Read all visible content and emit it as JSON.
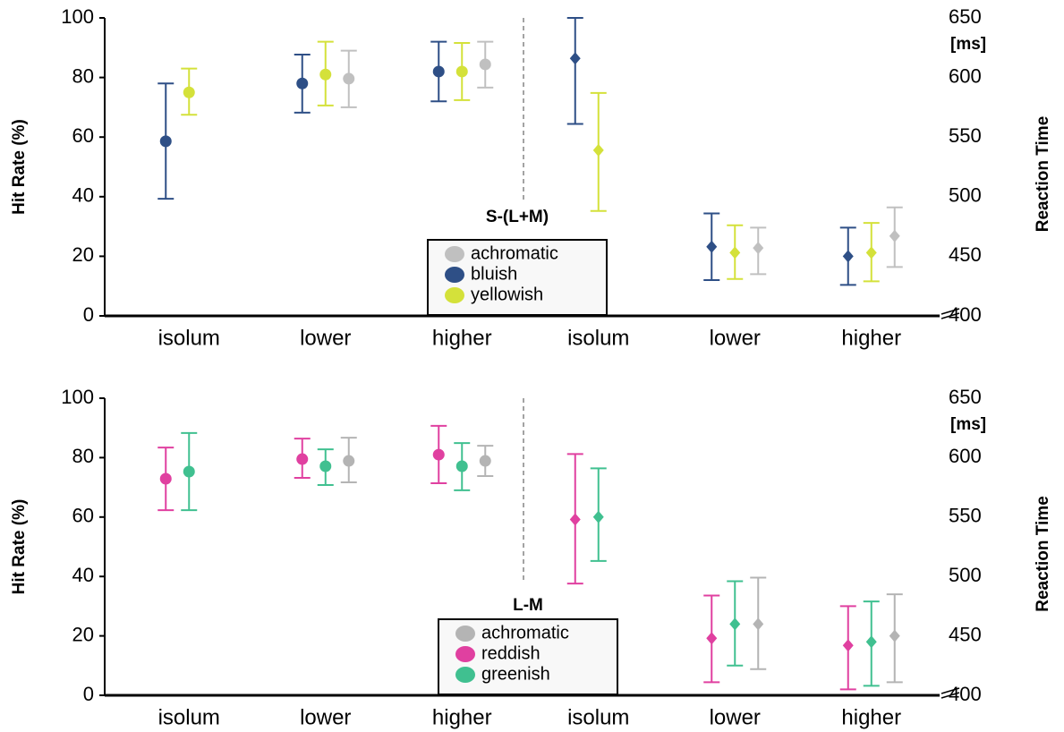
{
  "chart_data": [
    {
      "type": "errorbar",
      "title": "S-(L+M)",
      "y_label": "Hit Rate (%)",
      "y2_label": "Reaction Time",
      "y2_unit": "[ms]",
      "categories": [
        "isolum",
        "lower",
        "higher",
        "isolum",
        "lower",
        "higher"
      ],
      "ylim": [
        0,
        100
      ],
      "yticks": [
        0,
        20,
        40,
        60,
        80,
        100
      ],
      "y2lim": [
        400,
        650
      ],
      "y2ticks": [
        400,
        450,
        500,
        550,
        600,
        650
      ],
      "series": [
        {
          "name": "achromatic",
          "color": "#c0c0c0",
          "marker": "circle",
          "values": [
            null,
            79.6,
            84.4,
            null,
            null,
            null
          ],
          "low": [
            null,
            70,
            76.6,
            null,
            null,
            null
          ],
          "high": [
            null,
            89,
            92,
            null,
            null,
            null
          ]
        },
        {
          "name": "bluish",
          "color": "#2e4f86",
          "marker": "circle",
          "values": [
            58.6,
            78,
            82,
            null,
            null,
            null
          ],
          "low": [
            39.3,
            68.2,
            72,
            null,
            null,
            null
          ],
          "high": [
            78,
            87.7,
            92,
            null,
            null,
            null
          ]
        },
        {
          "name": "yellowish",
          "color": "#d4e13a",
          "marker": "circle",
          "values": [
            75,
            81,
            82,
            null,
            null,
            null
          ],
          "low": [
            67.5,
            70.6,
            72.4,
            null,
            null,
            null
          ],
          "high": [
            83,
            92,
            91.6,
            null,
            null,
            null
          ]
        },
        {
          "color": "#c0c0c0",
          "axis": "y2",
          "marker": "diamond",
          "values": [
            null,
            null,
            null,
            null,
            457,
            467
          ],
          "low": [
            null,
            null,
            null,
            null,
            435,
            441
          ],
          "high": [
            null,
            null,
            null,
            null,
            474,
            491
          ]
        },
        {
          "color": "#2e4f86",
          "axis": "y2",
          "marker": "diamond",
          "values": [
            null,
            null,
            null,
            616,
            458,
            450
          ],
          "low": [
            null,
            null,
            null,
            561,
            430,
            426
          ],
          "high": [
            null,
            null,
            null,
            650,
            486,
            474
          ]
        },
        {
          "color": "#d4e13a",
          "axis": "y2",
          "marker": "diamond",
          "values": [
            null,
            null,
            null,
            539,
            453,
            453
          ],
          "low": [
            null,
            null,
            null,
            488,
            431,
            429
          ],
          "high": [
            null,
            null,
            null,
            587,
            476,
            478
          ]
        }
      ]
    },
    {
      "type": "errorbar",
      "title": "L-M",
      "y_label": "Hit Rate (%)",
      "y2_label": "Reaction Time",
      "y2_unit": "[ms]",
      "categories": [
        "isolum",
        "lower",
        "higher",
        "isolum",
        "lower",
        "higher"
      ],
      "ylim": [
        0,
        100
      ],
      "yticks": [
        0,
        20,
        40,
        60,
        80,
        100
      ],
      "y2lim": [
        400,
        650
      ],
      "y2ticks": [
        400,
        450,
        500,
        550,
        600,
        650
      ],
      "series": [
        {
          "name": "achromatic",
          "color": "#b4b4b4",
          "marker": "circle",
          "values": [
            null,
            78.9,
            78.9,
            null,
            null,
            null
          ],
          "low": [
            null,
            71.7,
            73.8,
            null,
            null,
            null
          ],
          "high": [
            null,
            86.7,
            84,
            null,
            null,
            null
          ]
        },
        {
          "name": "reddish",
          "color": "#e040a0",
          "marker": "circle",
          "values": [
            72.9,
            79.5,
            81,
            null,
            null,
            null
          ],
          "low": [
            62.3,
            73.2,
            71.4,
            null,
            null,
            null
          ],
          "high": [
            83.4,
            86.4,
            90.7,
            null,
            null,
            null
          ]
        },
        {
          "name": "greenish",
          "color": "#40c090",
          "marker": "circle",
          "values": [
            75.3,
            77.1,
            77.1,
            null,
            null,
            null
          ],
          "low": [
            62.3,
            70.8,
            69,
            null,
            null,
            null
          ],
          "high": [
            88.3,
            82.8,
            84.9,
            null,
            null,
            null
          ]
        },
        {
          "color": "#b4b4b4",
          "axis": "y2",
          "marker": "diamond",
          "values": [
            null,
            null,
            null,
            null,
            460,
            450
          ],
          "low": [
            null,
            null,
            null,
            null,
            422,
            411
          ],
          "high": [
            null,
            null,
            null,
            null,
            499,
            485
          ]
        },
        {
          "color": "#e040a0",
          "axis": "y2",
          "marker": "diamond",
          "values": [
            null,
            null,
            null,
            548,
            448,
            442
          ],
          "low": [
            null,
            null,
            null,
            494,
            411,
            405
          ],
          "high": [
            null,
            null,
            null,
            603,
            484,
            475
          ]
        },
        {
          "color": "#40c090",
          "axis": "y2",
          "marker": "diamond",
          "values": [
            null,
            null,
            null,
            550,
            460,
            445
          ],
          "low": [
            null,
            null,
            null,
            513,
            425,
            408
          ],
          "high": [
            null,
            null,
            null,
            591,
            496,
            479
          ]
        }
      ]
    }
  ]
}
